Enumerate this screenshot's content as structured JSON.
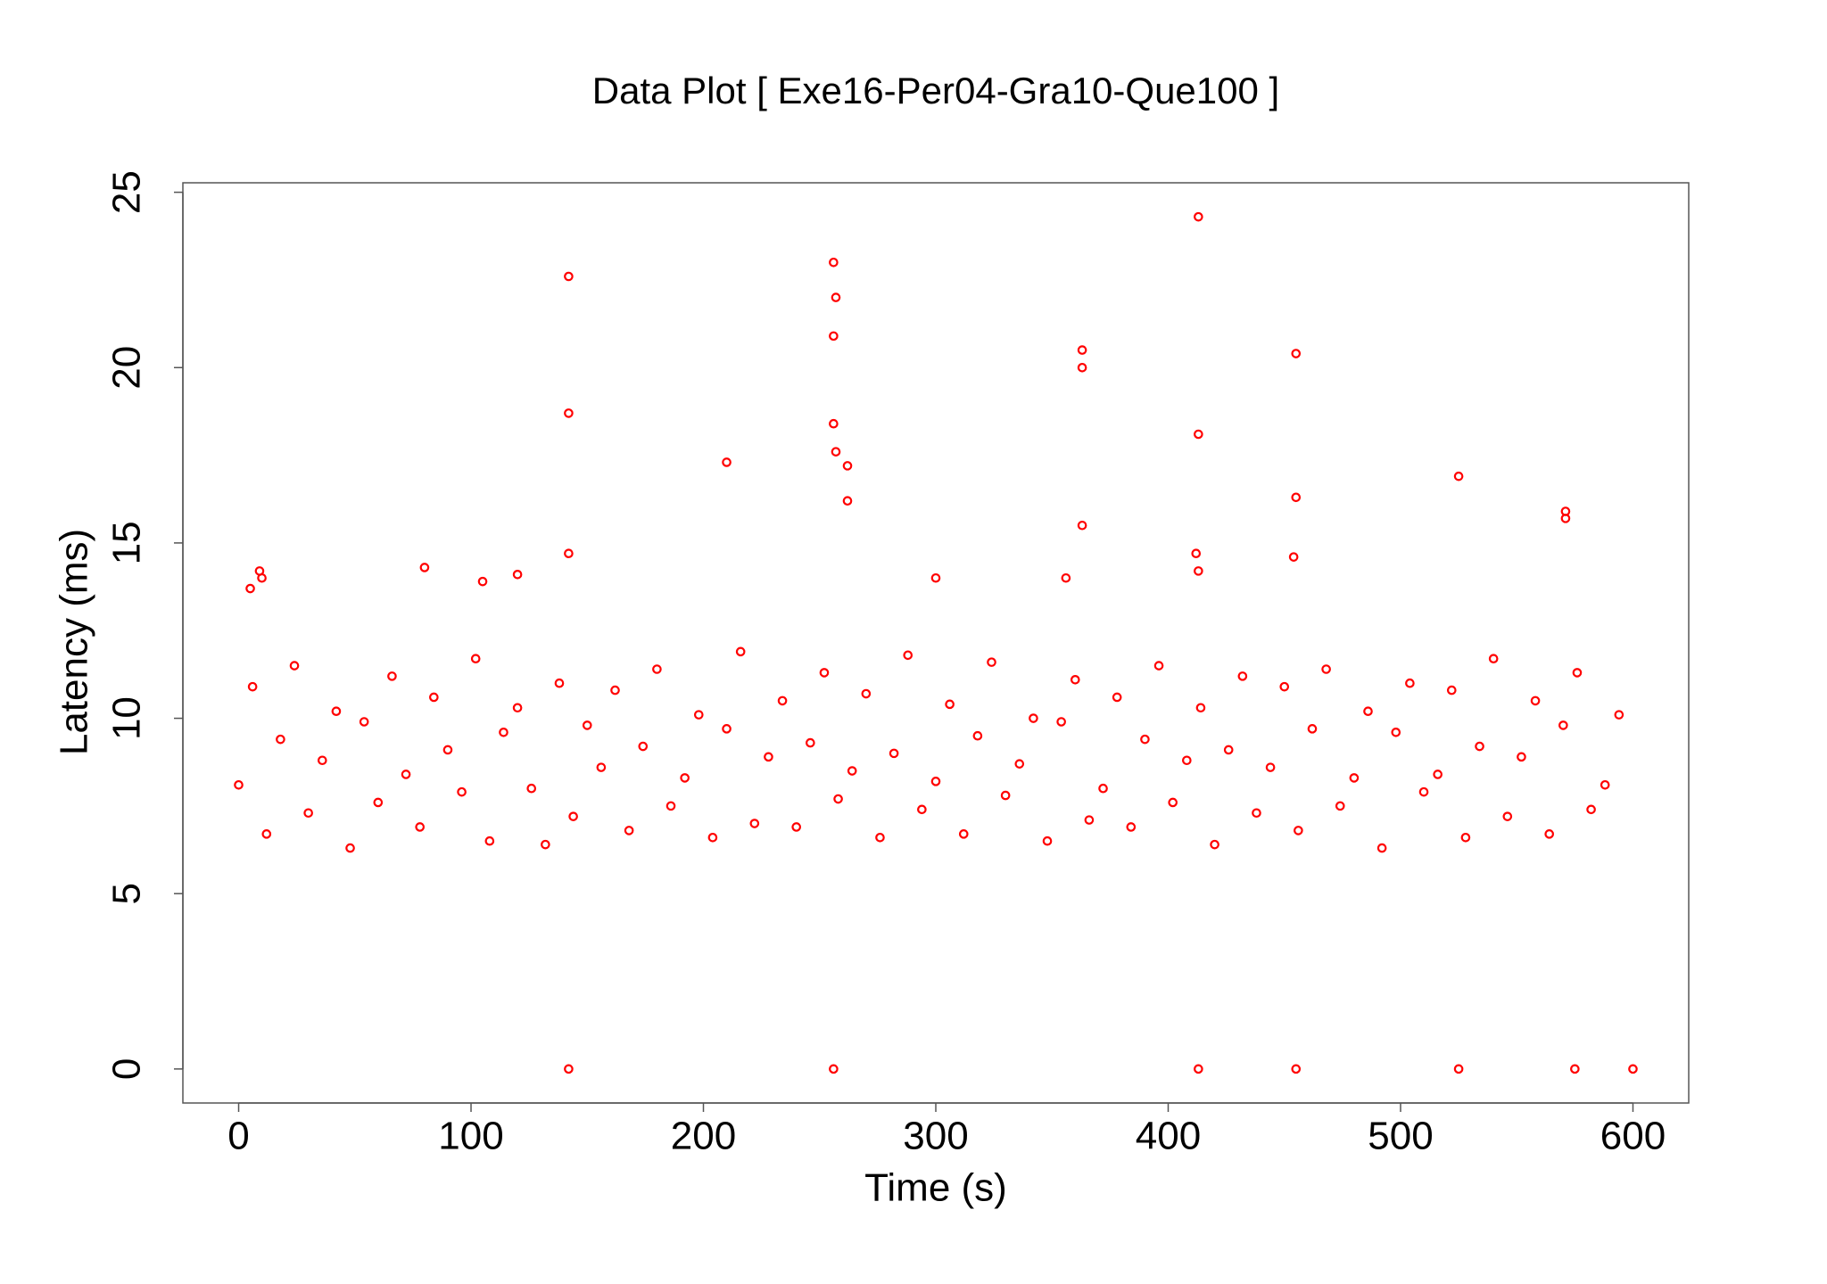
{
  "chart_data": {
    "type": "scatter",
    "title": "Data Plot [ Exe16-Per04-Gra10-Que100 ]",
    "x_label": "Time (s)",
    "y_label": "Latency (ms)",
    "color": "#ff0000",
    "xlim": [
      -24,
      624
    ],
    "ylim": [
      -0.97,
      25.27
    ],
    "xticks": [
      0,
      100,
      200,
      300,
      400,
      500,
      600
    ],
    "yticks": [
      0,
      5,
      10,
      15,
      20,
      25
    ],
    "x": [
      0,
      6,
      12,
      18,
      24,
      30,
      36,
      42,
      48,
      54,
      60,
      66,
      72,
      78,
      84,
      90,
      96,
      102,
      108,
      114,
      120,
      126,
      132,
      138,
      144,
      150,
      156,
      162,
      168,
      174,
      180,
      186,
      192,
      198,
      204,
      210,
      216,
      222,
      228,
      234,
      240,
      246,
      252,
      258,
      264,
      270,
      276,
      282,
      288,
      294,
      300,
      306,
      312,
      318,
      324,
      330,
      336,
      342,
      348,
      354,
      360,
      366,
      372,
      378,
      384,
      390,
      396,
      402,
      408,
      414,
      420,
      426,
      432,
      438,
      444,
      450,
      456,
      462,
      468,
      474,
      480,
      486,
      492,
      498,
      504,
      510,
      516,
      522,
      528,
      534,
      540,
      546,
      552,
      558,
      564,
      570,
      576,
      582,
      588,
      594,
      142,
      142,
      142,
      256,
      257,
      256,
      256,
      257,
      262,
      262,
      210,
      413,
      413,
      363,
      363,
      363,
      455,
      455,
      454,
      525,
      571,
      571,
      9,
      10,
      5,
      80,
      120,
      105,
      412,
      413,
      300,
      356,
      142,
      256,
      413,
      455,
      525,
      575,
      600
    ],
    "values": [
      8.1,
      10.9,
      6.7,
      9.4,
      11.5,
      7.3,
      8.8,
      10.2,
      6.3,
      9.9,
      7.6,
      11.2,
      8.4,
      6.9,
      10.6,
      9.1,
      7.9,
      11.7,
      6.5,
      9.6,
      10.3,
      8.0,
      6.4,
      11.0,
      7.2,
      9.8,
      8.6,
      10.8,
      6.8,
      9.2,
      11.4,
      7.5,
      8.3,
      10.1,
      6.6,
      9.7,
      11.9,
      7.0,
      8.9,
      10.5,
      6.9,
      9.3,
      11.3,
      7.7,
      8.5,
      10.7,
      6.6,
      9.0,
      11.8,
      7.4,
      8.2,
      10.4,
      6.7,
      9.5,
      11.6,
      7.8,
      8.7,
      10.0,
      6.5,
      9.9,
      11.1,
      7.1,
      8.0,
      10.6,
      6.9,
      9.4,
      11.5,
      7.6,
      8.8,
      10.3,
      6.4,
      9.1,
      11.2,
      7.3,
      8.6,
      10.9,
      6.8,
      9.7,
      11.4,
      7.5,
      8.3,
      10.2,
      6.3,
      9.6,
      11.0,
      7.9,
      8.4,
      10.8,
      6.6,
      9.2,
      11.7,
      7.2,
      8.9,
      10.5,
      6.7,
      9.8,
      11.3,
      7.4,
      8.1,
      10.1,
      22.6,
      18.7,
      14.7,
      23,
      22,
      20.9,
      18.4,
      17.6,
      17.2,
      16.2,
      17.3,
      24.3,
      18.1,
      20.5,
      20,
      15.5,
      20.4,
      16.3,
      14.6,
      16.9,
      15.9,
      15.7,
      14.2,
      14,
      13.7,
      14.3,
      14.1,
      13.9,
      14.7,
      14.2,
      14,
      14,
      0,
      0,
      0,
      0,
      0,
      0,
      0
    ]
  }
}
